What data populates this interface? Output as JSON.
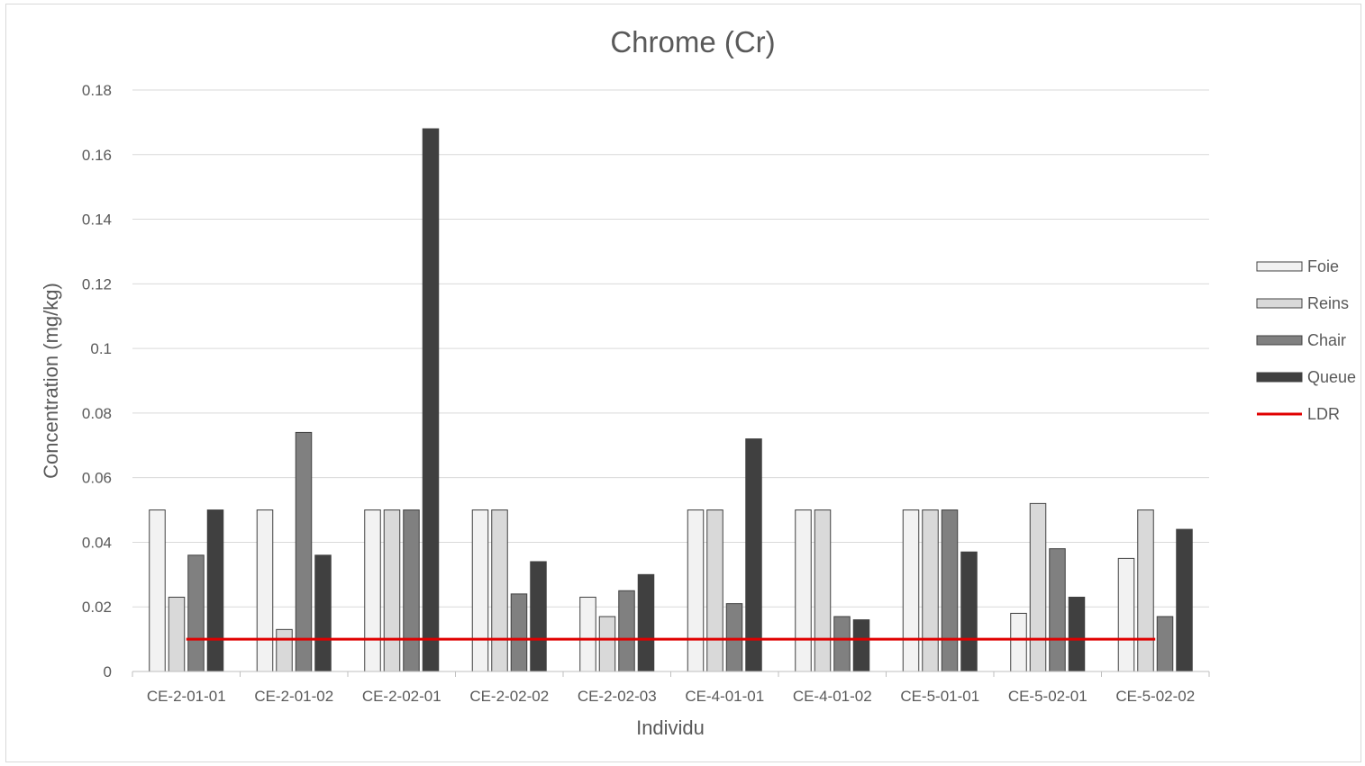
{
  "chart_data": {
    "type": "bar",
    "title": "Chrome (Cr)",
    "xlabel": "Individu",
    "ylabel": "Concentration (mg/kg)",
    "ylim": [
      0,
      0.18
    ],
    "yticks": [
      "0",
      "0.02",
      "0.04",
      "0.06",
      "0.08",
      "0.1",
      "0.12",
      "0.14",
      "0.16",
      "0.18"
    ],
    "grid": true,
    "legend_position": "right",
    "categories": [
      "CE-2-01-01",
      "CE-2-01-02",
      "CE-2-02-01",
      "CE-2-02-02",
      "CE-2-02-03",
      "CE-4-01-01",
      "CE-4-01-02",
      "CE-5-01-01",
      "CE-5-02-01",
      "CE-5-02-02"
    ],
    "series": [
      {
        "name": "Foie",
        "color": "#f2f2f2",
        "values": [
          0.05,
          0.05,
          0.05,
          0.05,
          0.023,
          0.05,
          0.05,
          0.05,
          0.018,
          0.035
        ]
      },
      {
        "name": "Reins",
        "color": "#d9d9d9",
        "values": [
          0.023,
          0.013,
          0.05,
          0.05,
          0.017,
          0.05,
          0.05,
          0.05,
          0.052,
          0.05
        ]
      },
      {
        "name": "Chair",
        "color": "#808080",
        "values": [
          0.036,
          0.074,
          0.05,
          0.024,
          0.025,
          0.021,
          0.017,
          0.05,
          0.038,
          0.017
        ]
      },
      {
        "name": "Queue",
        "color": "#404040",
        "values": [
          0.05,
          0.036,
          0.168,
          0.034,
          0.03,
          0.072,
          0.016,
          0.037,
          0.023,
          0.044
        ]
      }
    ],
    "reference_line": {
      "name": "LDR",
      "color": "#e00000",
      "value": 0.01
    }
  }
}
